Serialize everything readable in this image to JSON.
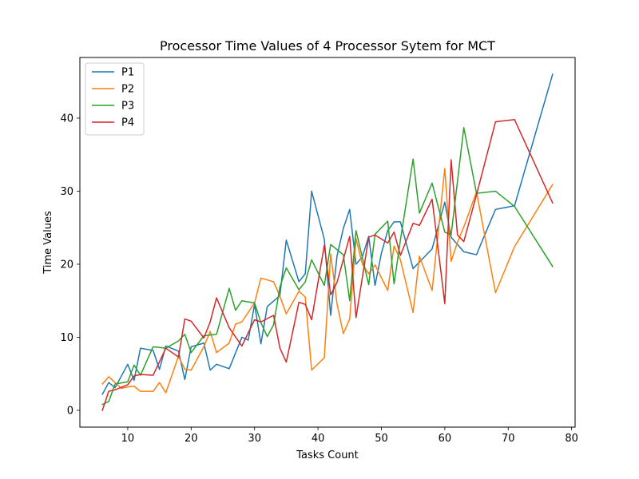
{
  "chart_data": {
    "type": "line",
    "title": "Processor Time Values of 4 Processor Sytem for MCT",
    "xlabel": "Tasks Count",
    "ylabel": "Time Values",
    "xlim": [
      2.45,
      80.55
    ],
    "ylim": [
      -2.3,
      48.3
    ],
    "xticks": [
      10,
      20,
      30,
      40,
      50,
      60,
      70,
      80
    ],
    "yticks": [
      0,
      10,
      20,
      30,
      40
    ],
    "grid": false,
    "legend_position": "top-left",
    "series": [
      {
        "name": "P1",
        "color": "#1f77b4",
        "points": [
          [
            6,
            2.2
          ],
          [
            7,
            3.8
          ],
          [
            8,
            3.1
          ],
          [
            10,
            6.3
          ],
          [
            11,
            4.1
          ],
          [
            12,
            8.5
          ],
          [
            14,
            8.2
          ],
          [
            15,
            5.6
          ],
          [
            16,
            8.8
          ],
          [
            18,
            8.1
          ],
          [
            19,
            4.2
          ],
          [
            20,
            8.7
          ],
          [
            22,
            9.2
          ],
          [
            23,
            5.5
          ],
          [
            24,
            6.3
          ],
          [
            26,
            5.7
          ],
          [
            28,
            10.0
          ],
          [
            29,
            9.6
          ],
          [
            30,
            14.5
          ],
          [
            31,
            9.1
          ],
          [
            32,
            14.2
          ],
          [
            34,
            15.7
          ],
          [
            35,
            23.3
          ],
          [
            37,
            17.6
          ],
          [
            38,
            18.7
          ],
          [
            39,
            30.0
          ],
          [
            41,
            23.4
          ],
          [
            42,
            13.0
          ],
          [
            43,
            21.1
          ],
          [
            44,
            24.9
          ],
          [
            45,
            27.5
          ],
          [
            46,
            20.0
          ],
          [
            47,
            21.0
          ],
          [
            48,
            23.8
          ],
          [
            49,
            17.1
          ],
          [
            50,
            21.5
          ],
          [
            51,
            24.6
          ],
          [
            52,
            25.8
          ],
          [
            53,
            25.8
          ],
          [
            55,
            19.4
          ],
          [
            56,
            20.3
          ],
          [
            58,
            22.1
          ],
          [
            60,
            28.5
          ],
          [
            61,
            23.7
          ],
          [
            63,
            21.7
          ],
          [
            65,
            21.3
          ],
          [
            66,
            23.4
          ],
          [
            68,
            27.5
          ],
          [
            71,
            28.0
          ],
          [
            77,
            46.0
          ]
        ]
      },
      {
        "name": "P2",
        "color": "#ff7f0e",
        "points": [
          [
            6,
            3.6
          ],
          [
            7,
            4.6
          ],
          [
            8,
            3.8
          ],
          [
            9,
            3.0
          ],
          [
            10,
            3.2
          ],
          [
            11,
            3.3
          ],
          [
            12,
            2.6
          ],
          [
            14,
            2.6
          ],
          [
            15,
            3.8
          ],
          [
            16,
            2.4
          ],
          [
            18,
            7.4
          ],
          [
            19,
            5.6
          ],
          [
            20,
            5.5
          ],
          [
            22,
            8.7
          ],
          [
            23,
            10.8
          ],
          [
            24,
            7.9
          ],
          [
            26,
            9.2
          ],
          [
            27,
            11.8
          ],
          [
            28,
            12.1
          ],
          [
            30,
            14.7
          ],
          [
            31,
            18.1
          ],
          [
            33,
            17.6
          ],
          [
            34,
            15.6
          ],
          [
            35,
            13.2
          ],
          [
            37,
            16.3
          ],
          [
            38,
            15.5
          ],
          [
            39,
            5.5
          ],
          [
            41,
            7.2
          ],
          [
            42,
            21.4
          ],
          [
            43,
            14.6
          ],
          [
            44,
            10.5
          ],
          [
            45,
            12.5
          ],
          [
            46,
            23.5
          ],
          [
            47,
            20.0
          ],
          [
            48,
            18.7
          ],
          [
            49,
            19.9
          ],
          [
            51,
            16.4
          ],
          [
            52,
            22.5
          ],
          [
            53,
            20.6
          ],
          [
            55,
            13.4
          ],
          [
            56,
            21.1
          ],
          [
            58,
            16.4
          ],
          [
            60,
            33.1
          ],
          [
            61,
            20.4
          ],
          [
            62,
            23.0
          ],
          [
            63,
            25.1
          ],
          [
            65,
            29.9
          ],
          [
            68,
            16.1
          ],
          [
            71,
            22.4
          ],
          [
            77,
            30.9
          ]
        ]
      },
      {
        "name": "P3",
        "color": "#2ca02c",
        "points": [
          [
            6,
            0.8
          ],
          [
            7,
            1.2
          ],
          [
            8,
            3.6
          ],
          [
            10,
            3.9
          ],
          [
            11,
            6.2
          ],
          [
            12,
            4.8
          ],
          [
            14,
            8.7
          ],
          [
            16,
            8.5
          ],
          [
            18,
            9.5
          ],
          [
            19,
            10.4
          ],
          [
            20,
            7.9
          ],
          [
            22,
            10.2
          ],
          [
            24,
            10.4
          ],
          [
            26,
            16.7
          ],
          [
            27,
            13.7
          ],
          [
            28,
            15.0
          ],
          [
            30,
            14.7
          ],
          [
            31,
            12.0
          ],
          [
            32,
            10.1
          ],
          [
            33,
            11.7
          ],
          [
            34,
            16.9
          ],
          [
            35,
            19.5
          ],
          [
            37,
            16.5
          ],
          [
            38,
            17.6
          ],
          [
            39,
            20.6
          ],
          [
            41,
            17.1
          ],
          [
            42,
            22.7
          ],
          [
            44,
            21.3
          ],
          [
            45,
            15.0
          ],
          [
            46,
            24.6
          ],
          [
            48,
            17.2
          ],
          [
            49,
            24.1
          ],
          [
            51,
            25.9
          ],
          [
            52,
            17.3
          ],
          [
            53,
            23.3
          ],
          [
            55,
            34.4
          ],
          [
            56,
            27.0
          ],
          [
            58,
            31.1
          ],
          [
            60,
            24.4
          ],
          [
            61,
            24.0
          ],
          [
            63,
            38.7
          ],
          [
            65,
            29.7
          ],
          [
            68,
            30.0
          ],
          [
            71,
            27.9
          ],
          [
            77,
            19.7
          ]
        ]
      },
      {
        "name": "P4",
        "color": "#d62728",
        "points": [
          [
            6,
            0.0
          ],
          [
            7,
            2.6
          ],
          [
            8,
            2.8
          ],
          [
            10,
            3.5
          ],
          [
            11,
            4.7
          ],
          [
            12,
            4.9
          ],
          [
            14,
            4.8
          ],
          [
            16,
            8.5
          ],
          [
            18,
            7.3
          ],
          [
            19,
            12.5
          ],
          [
            20,
            12.2
          ],
          [
            22,
            9.9
          ],
          [
            23,
            12.1
          ],
          [
            24,
            15.4
          ],
          [
            26,
            11.3
          ],
          [
            28,
            8.8
          ],
          [
            30,
            12.4
          ],
          [
            31,
            12.1
          ],
          [
            33,
            13.0
          ],
          [
            34,
            8.5
          ],
          [
            35,
            6.6
          ],
          [
            37,
            14.8
          ],
          [
            38,
            14.5
          ],
          [
            39,
            12.4
          ],
          [
            41,
            22.6
          ],
          [
            42,
            15.8
          ],
          [
            43,
            17.5
          ],
          [
            45,
            23.8
          ],
          [
            46,
            12.7
          ],
          [
            48,
            23.7
          ],
          [
            49,
            24.0
          ],
          [
            51,
            22.9
          ],
          [
            52,
            24.4
          ],
          [
            53,
            21.2
          ],
          [
            55,
            25.6
          ],
          [
            56,
            25.3
          ],
          [
            58,
            28.9
          ],
          [
            60,
            14.6
          ],
          [
            61,
            34.3
          ],
          [
            62,
            24.0
          ],
          [
            63,
            23.1
          ],
          [
            65,
            29.5
          ],
          [
            68,
            39.5
          ],
          [
            71,
            39.8
          ],
          [
            77,
            28.4
          ]
        ]
      }
    ]
  }
}
